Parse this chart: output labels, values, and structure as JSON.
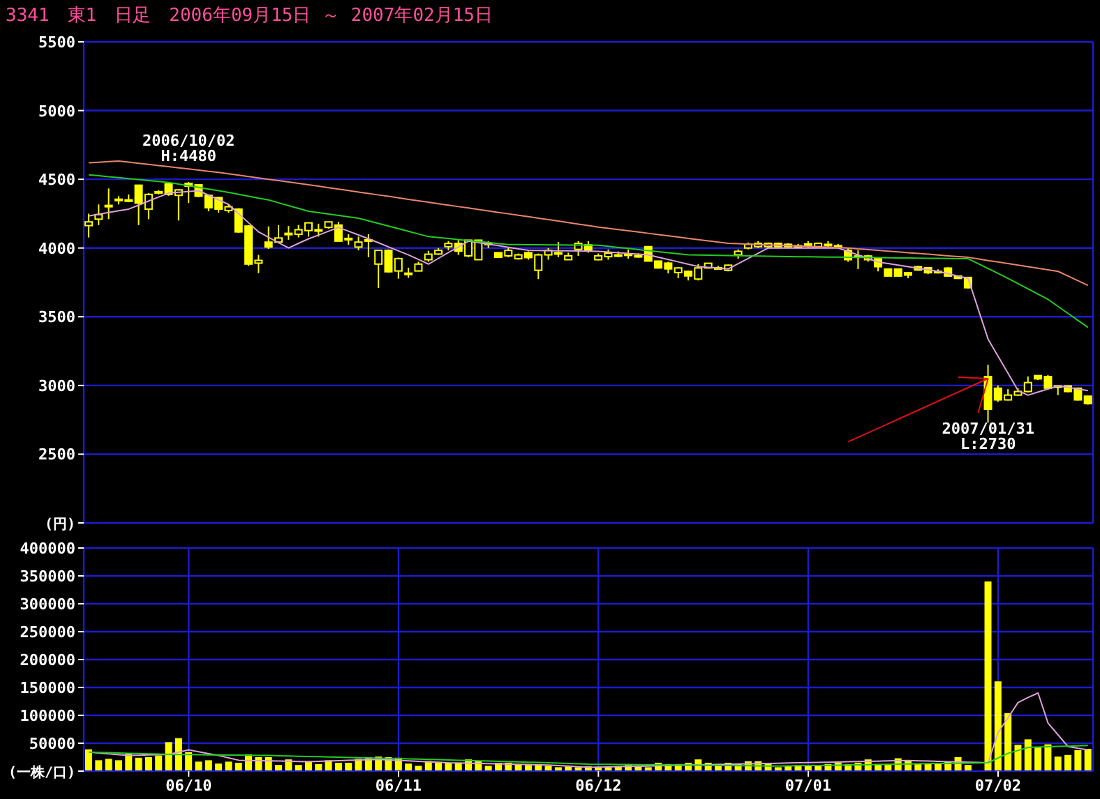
{
  "chart_data": [
    {
      "type": "candlestick",
      "title": "3341　東1　日足　2006年09月15日 ～ 2007年02月15日",
      "categories": [
        null,
        null,
        null,
        null,
        null,
        null,
        null,
        null,
        null,
        null,
        null,
        null,
        null,
        null,
        null,
        null,
        null,
        null,
        null,
        null,
        null,
        null,
        null,
        null,
        null,
        null,
        null,
        null,
        null,
        null,
        null,
        null,
        null,
        null,
        null,
        null,
        null,
        null,
        null,
        null,
        null,
        null,
        null,
        null,
        null,
        null,
        null,
        null,
        null,
        null,
        null,
        null,
        null,
        null,
        null,
        null,
        null,
        null,
        null,
        null,
        null,
        null,
        null,
        null,
        null,
        null,
        null,
        null,
        null,
        null,
        null,
        null,
        null,
        null,
        null,
        null,
        null,
        null,
        null,
        null,
        null,
        null,
        null,
        null,
        null,
        null,
        null,
        null,
        null,
        null,
        null,
        null,
        null,
        null,
        null,
        null,
        null,
        null,
        null,
        null,
        null
      ],
      "series": [
        {
          "type": "candlestick",
          "color": "#ffff00",
          "ohlc": [
            [
              4163,
              4250,
              4077,
              4190
            ],
            [
              4210,
              4317,
              4167,
              4243
            ],
            [
              4300,
              4433,
              4210,
              4310
            ],
            [
              4350,
              4377,
              4317,
              4355
            ],
            [
              4345,
              4390,
              4333,
              4350
            ],
            [
              4457,
              4460,
              4167,
              4327
            ],
            [
              4283,
              4400,
              4210,
              4390
            ],
            [
              4400,
              4420,
              4390,
              4410
            ],
            [
              4467,
              4470,
              4380,
              4390
            ],
            [
              4383,
              4430,
              4200,
              4423
            ],
            [
              4470,
              4480,
              4327,
              4450
            ],
            [
              4460,
              4463,
              4370,
              4377
            ],
            [
              4383,
              4390,
              4267,
              4293
            ],
            [
              4367,
              4367,
              4257,
              4283
            ],
            [
              4273,
              4317,
              4257,
              4300
            ],
            [
              4283,
              4290,
              4110,
              4117
            ],
            [
              4160,
              4167,
              3870,
              3883
            ],
            [
              3890,
              3950,
              3817,
              3910
            ],
            [
              4043,
              4157,
              3993,
              4007
            ],
            [
              4043,
              4167,
              4040,
              4073
            ],
            [
              4103,
              4160,
              4060,
              4107
            ],
            [
              4100,
              4167,
              4077,
              4133
            ],
            [
              4127,
              4183,
              4083,
              4183
            ],
            [
              4130,
              4177,
              4083,
              4133
            ],
            [
              4150,
              4190,
              4140,
              4190
            ],
            [
              4167,
              4190,
              4050,
              4050
            ],
            [
              4067,
              4100,
              4023,
              4070
            ],
            [
              4007,
              4083,
              3983,
              4043
            ],
            [
              4055,
              4100,
              3933,
              4060
            ],
            [
              3883,
              3983,
              3710,
              3983
            ],
            [
              3983,
              3990,
              3820,
              3827
            ],
            [
              3833,
              3930,
              3777,
              3923
            ],
            [
              3815,
              3857,
              3783,
              3817
            ],
            [
              3833,
              3900,
              3830,
              3883
            ],
            [
              3915,
              3980,
              3900,
              3955
            ],
            [
              3956,
              4000,
              3950,
              3983
            ],
            [
              4010,
              4050,
              3983,
              4033
            ],
            [
              4033,
              4057,
              3950,
              3977
            ],
            [
              3943,
              4060,
              3933,
              4057
            ],
            [
              3915,
              4060,
              3915,
              4057
            ],
            [
              4030,
              4050,
              4000,
              4035
            ],
            [
              3966,
              3966,
              3930,
              3933
            ],
            [
              3943,
              4000,
              3933,
              3983
            ],
            [
              3922,
              3960,
              3915,
              3950
            ],
            [
              3966,
              3976,
              3915,
              3930
            ],
            [
              3838,
              3960,
              3774,
              3950
            ],
            [
              3950,
              4000,
              3915,
              3983
            ],
            [
              3966,
              4044,
              3933,
              3966
            ],
            [
              3915,
              3966,
              3915,
              3943
            ],
            [
              3990,
              4050,
              3943,
              4033
            ],
            [
              4023,
              4050,
              3966,
              3983
            ],
            [
              3915,
              3960,
              3910,
              3943
            ],
            [
              3937,
              3990,
              3915,
              3963
            ],
            [
              3950,
              3975,
              3933,
              3950
            ],
            [
              3956,
              3990,
              3922,
              3956
            ],
            [
              3943,
              3960,
              3930,
              3945
            ],
            [
              4010,
              4010,
              3905,
              3905
            ],
            [
              3905,
              3905,
              3850,
              3855
            ],
            [
              3890,
              3900,
              3815,
              3848
            ],
            [
              3821,
              3860,
              3780,
              3855
            ],
            [
              3830,
              3835,
              3764,
              3797
            ],
            [
              3774,
              3882,
              3764,
              3855
            ],
            [
              3855,
              3890,
              3850,
              3889
            ],
            [
              3855,
              3870,
              3845,
              3857
            ],
            [
              3838,
              3880,
              3830,
              3875
            ],
            [
              3950,
              3990,
              3922,
              3976
            ],
            [
              4000,
              4040,
              3990,
              4027
            ],
            [
              4010,
              4050,
              4000,
              4034
            ],
            [
              4010,
              4040,
              4000,
              4034
            ],
            [
              4034,
              4040,
              4005,
              4010
            ],
            [
              4027,
              4035,
              4005,
              4010
            ],
            [
              4017,
              4030,
              4005,
              4017
            ],
            [
              4030,
              4050,
              4000,
              4030
            ],
            [
              4010,
              4040,
              4005,
              4034
            ],
            [
              4027,
              4050,
              4000,
              4027
            ],
            [
              4017,
              4030,
              4005,
              4017
            ],
            [
              3983,
              4000,
              3900,
              3915
            ],
            [
              3942,
              3983,
              3847,
              3942
            ],
            [
              3915,
              3950,
              3900,
              3942
            ],
            [
              3922,
              3930,
              3830,
              3864
            ],
            [
              3847,
              3850,
              3790,
              3796
            ],
            [
              3847,
              3850,
              3790,
              3796
            ],
            [
              3820,
              3825,
              3780,
              3803
            ],
            [
              3864,
              3870,
              3835,
              3840
            ],
            [
              3857,
              3860,
              3810,
              3820
            ],
            [
              3830,
              3845,
              3815,
              3830
            ],
            [
              3854,
              3860,
              3790,
              3796
            ],
            [
              3796,
              3800,
              3775,
              3779
            ],
            [
              3786,
              3790,
              3705,
              3711
            ],
            null,
            [
              3065,
              3150,
              2730,
              2827
            ],
            [
              2980,
              3000,
              2880,
              2895
            ],
            [
              2895,
              2973,
              2890,
              2930
            ],
            [
              2930,
              2980,
              2925,
              2956
            ],
            [
              2956,
              3065,
              2950,
              3021
            ],
            [
              3072,
              3075,
              3040,
              3048
            ],
            [
              3065,
              3075,
              2975,
              2980
            ],
            [
              2997,
              3000,
              2930,
              2997
            ],
            [
              2997,
              3000,
              2950,
              2956
            ],
            [
              2980,
              2985,
              2890,
              2895
            ],
            [
              2922,
              2925,
              2860,
              2868
            ]
          ]
        },
        {
          "type": "line",
          "color": "#dda0dd",
          "values": [
            4233,
            4246,
            4258,
            4271,
            4283,
            4312,
            4342,
            4371,
            4400,
            4406,
            4411,
            4417,
            4384,
            4350,
            4317,
            4250,
            4183,
            4117,
            4078,
            4039,
            4000,
            4034,
            4067,
            4094,
            4122,
            4150,
            4122,
            4095,
            4067,
            4038,
            4008,
            3979,
            3950,
            3917,
            3883,
            3925,
            3967,
            4008,
            4050,
            4039,
            4028,
            4017,
            4005,
            3994,
            3983,
            3982,
            3981,
            3980,
            3979,
            3978,
            3977,
            3976,
            3971,
            3966,
            3960,
            3955,
            3950,
            3933,
            3916,
            3899,
            3882,
            3865,
            3859,
            3854,
            3848,
            3886,
            3924,
            3962,
            4000,
            4000,
            4000,
            4000,
            4000,
            4000,
            4000,
            4000,
            3975,
            3949,
            3924,
            3898,
            3887,
            3876,
            3864,
            3853,
            3841,
            3830,
            3813,
            3796,
            3779,
            3558,
            3337,
            3212,
            3088,
            2963,
            2929,
            2952,
            2974,
            2997,
            2986,
            2974,
            2963
          ]
        },
        {
          "type": "line",
          "color": "#22cc22",
          "values": [
            4533,
            4526,
            4519,
            4512,
            4505,
            4498,
            4491,
            4484,
            4477,
            4465,
            4453,
            4441,
            4429,
            4417,
            4404,
            4390,
            4377,
            4363,
            4350,
            4329,
            4308,
            4288,
            4267,
            4257,
            4247,
            4237,
            4227,
            4217,
            4198,
            4179,
            4160,
            4141,
            4122,
            4102,
            4083,
            4076,
            4069,
            4061,
            4054,
            4047,
            4040,
            4032,
            4025,
            4025,
            4024,
            4024,
            4023,
            4023,
            4022,
            4022,
            4021,
            4020,
            4012,
            4004,
            3997,
            3989,
            3981,
            3973,
            3966,
            3958,
            3950,
            3949,
            3948,
            3946,
            3945,
            3944,
            3943,
            3941,
            3940,
            3939,
            3938,
            3937,
            3936,
            3935,
            3934,
            3934,
            3933,
            3932,
            3931,
            3930,
            3929,
            3928,
            3927,
            3926,
            3925,
            3925,
            3924,
            3923,
            3922,
            3886,
            3851,
            3815,
            3779,
            3741,
            3703,
            3664,
            3626,
            3575,
            3524,
            3473,
            3422
          ]
        },
        {
          "type": "line",
          "color": "#e8866a",
          "values": [
            4620,
            4624,
            4629,
            4633,
            4625,
            4616,
            4608,
            4600,
            4592,
            4583,
            4575,
            4567,
            4558,
            4550,
            4540,
            4530,
            4520,
            4510,
            4500,
            4490,
            4480,
            4470,
            4460,
            4450,
            4439,
            4429,
            4418,
            4407,
            4397,
            4386,
            4376,
            4365,
            4354,
            4344,
            4333,
            4322,
            4312,
            4301,
            4291,
            4280,
            4270,
            4259,
            4249,
            4238,
            4228,
            4217,
            4206,
            4196,
            4185,
            4174,
            4163,
            4152,
            4143,
            4134,
            4125,
            4116,
            4107,
            4098,
            4089,
            4080,
            4070,
            4061,
            4052,
            4043,
            4034,
            4031,
            4028,
            4026,
            4023,
            4020,
            4017,
            4014,
            4011,
            4008,
            4006,
            4003,
            4000,
            3994,
            3989,
            3983,
            3977,
            3972,
            3966,
            3960,
            3955,
            3949,
            3943,
            3938,
            3932,
            3921,
            3909,
            3898,
            3887,
            3875,
            3864,
            3853,
            3841,
            3830,
            3796,
            3762,
            3728
          ]
        },
        {
          "type": "line",
          "color": "#e01010",
          "values": [
            null,
            null,
            null,
            null,
            null,
            null,
            null,
            null,
            null,
            null,
            null,
            null,
            null,
            null,
            null,
            null,
            null,
            null,
            null,
            null,
            null,
            null,
            null,
            null,
            null,
            null,
            null,
            null,
            null,
            null,
            null,
            null,
            null,
            null,
            null,
            null,
            null,
            null,
            null,
            null,
            null,
            null,
            null,
            null,
            null,
            null,
            null,
            null,
            null,
            null,
            null,
            null,
            null,
            null,
            null,
            null,
            null,
            null,
            null,
            null,
            null,
            null,
            null,
            null,
            null,
            null,
            null,
            null,
            null,
            null,
            null,
            null,
            null,
            null,
            null,
            null,
            2590,
            null,
            null,
            null,
            null,
            null,
            null,
            null,
            null,
            null,
            null,
            null,
            null,
            null,
            3050,
            null,
            null,
            null,
            null,
            null,
            null,
            null,
            null,
            null,
            null
          ]
        },
        {
          "type": "line",
          "color": "#e01010",
          "values": [
            null,
            null,
            null,
            null,
            null,
            null,
            null,
            null,
            null,
            null,
            null,
            null,
            null,
            null,
            null,
            null,
            null,
            null,
            null,
            null,
            null,
            null,
            null,
            null,
            null,
            null,
            null,
            null,
            null,
            null,
            null,
            null,
            null,
            null,
            null,
            null,
            null,
            null,
            null,
            null,
            null,
            null,
            null,
            null,
            null,
            null,
            null,
            null,
            null,
            null,
            null,
            null,
            null,
            null,
            null,
            null,
            null,
            null,
            null,
            null,
            null,
            null,
            null,
            null,
            null,
            null,
            null,
            null,
            null,
            null,
            null,
            null,
            null,
            null,
            null,
            null,
            null,
            null,
            null,
            null,
            null,
            null,
            null,
            null,
            null,
            null,
            null,
            3060,
            null,
            null,
            3050,
            null,
            null,
            null,
            null,
            null,
            null,
            null,
            null,
            null,
            null
          ]
        },
        {
          "type": "line",
          "color": "#e01010",
          "values": [
            null,
            null,
            null,
            null,
            null,
            null,
            null,
            null,
            null,
            null,
            null,
            null,
            null,
            null,
            null,
            null,
            null,
            null,
            null,
            null,
            null,
            null,
            null,
            null,
            null,
            null,
            null,
            null,
            null,
            null,
            null,
            null,
            null,
            null,
            null,
            null,
            null,
            null,
            null,
            null,
            null,
            null,
            null,
            null,
            null,
            null,
            null,
            null,
            null,
            null,
            null,
            null,
            null,
            null,
            null,
            null,
            null,
            null,
            null,
            null,
            null,
            null,
            null,
            null,
            null,
            null,
            null,
            null,
            null,
            null,
            null,
            null,
            null,
            null,
            null,
            null,
            null,
            null,
            null,
            null,
            null,
            null,
            null,
            null,
            null,
            null,
            null,
            null,
            null,
            2800,
            3050,
            null,
            null,
            null,
            null,
            null,
            null,
            null,
            null,
            null,
            null
          ]
        }
      ],
      "annotations": [
        {
          "text": "2006/10/02\nH:4480",
          "y": 4480
        },
        {
          "text": "2007/01/31\nL:2730",
          "y": 2730
        }
      ],
      "ylim": [
        2000,
        5500
      ],
      "yticks": [
        {
          "value": 2000,
          "label": "(円)"
        },
        2500,
        3000,
        3500,
        4000,
        4500,
        5000,
        5500
      ],
      "grid": true,
      "tick_labels": "y",
      "marker": "none"
    },
    {
      "type": "bar",
      "categories": [
        null,
        null,
        null,
        null,
        null,
        null,
        null,
        null,
        null,
        null,
        "06/10",
        null,
        null,
        null,
        null,
        null,
        null,
        null,
        null,
        null,
        null,
        null,
        null,
        null,
        null,
        null,
        null,
        null,
        null,
        null,
        null,
        "06/11",
        null,
        null,
        null,
        null,
        null,
        null,
        null,
        null,
        null,
        null,
        null,
        null,
        null,
        null,
        null,
        null,
        null,
        null,
        null,
        "06/12",
        null,
        null,
        null,
        null,
        null,
        null,
        null,
        null,
        null,
        null,
        null,
        null,
        null,
        null,
        null,
        null,
        null,
        null,
        null,
        null,
        "07/01",
        null,
        null,
        null,
        null,
        null,
        null,
        null,
        null,
        null,
        null,
        null,
        null,
        null,
        null,
        null,
        null,
        null,
        null,
        "07/02",
        null,
        null,
        null,
        null,
        null,
        null,
        null,
        null,
        null
      ],
      "series": [
        {
          "type": "bar",
          "color": "#ffff00",
          "values": [
            39000,
            19500,
            22000,
            19500,
            32000,
            24000,
            25000,
            28000,
            52000,
            59000,
            34000,
            17000,
            19500,
            13500,
            17000,
            15000,
            30000,
            25000,
            25000,
            11000,
            21000,
            11000,
            18000,
            12700,
            19500,
            15000,
            15000,
            22000,
            25000,
            26000,
            25000,
            24000,
            13500,
            9500,
            18000,
            15000,
            15000,
            15000,
            21000,
            18000,
            9500,
            15000,
            15000,
            12700,
            11000,
            12700,
            9500,
            7000,
            8500,
            7000,
            8500,
            7000,
            7000,
            8500,
            11000,
            9500,
            7000,
            15000,
            12700,
            12700,
            15000,
            21000,
            15000,
            12700,
            15000,
            12700,
            17500,
            17500,
            15000,
            7000,
            9500,
            11000,
            9500,
            9500,
            12700,
            15000,
            12700,
            15000,
            21000,
            12700,
            12700,
            23000,
            17500,
            12700,
            12700,
            12700,
            17500,
            25000,
            11000,
            null,
            340000,
            161000,
            104000,
            47000,
            57000,
            42500,
            48000,
            26000,
            29000,
            37500,
            40000
          ]
        },
        {
          "type": "line",
          "color": "#dda0dd",
          "values": [
            34000,
            32500,
            31000,
            29500,
            28000,
            28500,
            29000,
            29500,
            30000,
            34000,
            38000,
            34700,
            31300,
            28000,
            23800,
            19500,
            19100,
            18800,
            18400,
            18000,
            17700,
            17300,
            17000,
            17600,
            18100,
            18700,
            19300,
            19900,
            20400,
            21000,
            20100,
            19300,
            18400,
            17600,
            16700,
            15900,
            15000,
            14600,
            14200,
            13800,
            13400,
            13000,
            12600,
            12200,
            11800,
            11400,
            11000,
            10000,
            9000,
            7900,
            6800,
            7200,
            7600,
            8000,
            8400,
            8800,
            9200,
            9600,
            10000,
            10400,
            10800,
            11200,
            11600,
            12000,
            12300,
            12700,
            13100,
            13400,
            13800,
            14200,
            14600,
            14900,
            15300,
            15700,
            16000,
            16400,
            16800,
            17200,
            17500,
            17900,
            18300,
            18600,
            19000,
            18500,
            18000,
            17500,
            17000,
            16500,
            16000,
            15500,
            15000,
            69000,
            96000,
            123000,
            132000,
            140000,
            86000,
            65000,
            44000,
            41000,
            38000
          ]
        },
        {
          "type": "line",
          "color": "#22cc22",
          "values": [
            34000,
            33500,
            33000,
            32500,
            32000,
            31500,
            31000,
            30500,
            30000,
            29800,
            29600,
            29400,
            29200,
            29000,
            28800,
            28600,
            28400,
            28200,
            28000,
            27600,
            27100,
            26700,
            26300,
            25800,
            25400,
            24900,
            24500,
            24100,
            23700,
            23200,
            22800,
            22400,
            22000,
            21500,
            21000,
            20500,
            20000,
            19500,
            19000,
            18500,
            18000,
            17500,
            17000,
            16500,
            16000,
            15500,
            15000,
            14400,
            13800,
            13100,
            12500,
            12300,
            12100,
            12000,
            11800,
            11600,
            11400,
            11200,
            11000,
            10800,
            10700,
            10500,
            10300,
            10100,
            9900,
            9700,
            9600,
            9400,
            9200,
            9000,
            9300,
            9600,
            9900,
            10100,
            10400,
            10700,
            11000,
            11300,
            11600,
            11900,
            12100,
            12400,
            12700,
            13000,
            13300,
            13600,
            13900,
            14100,
            14400,
            14700,
            15000,
            23500,
            32000,
            37000,
            42500,
            43100,
            43700,
            44300,
            44800,
            45400,
            46000
          ]
        }
      ],
      "ylim": [
        0,
        400000
      ],
      "yticks": [
        {
          "value": 0,
          "label": "(一株/口)"
        },
        50000,
        100000,
        150000,
        200000,
        250000,
        300000,
        350000,
        400000
      ],
      "grid": true,
      "marker": "none"
    }
  ]
}
